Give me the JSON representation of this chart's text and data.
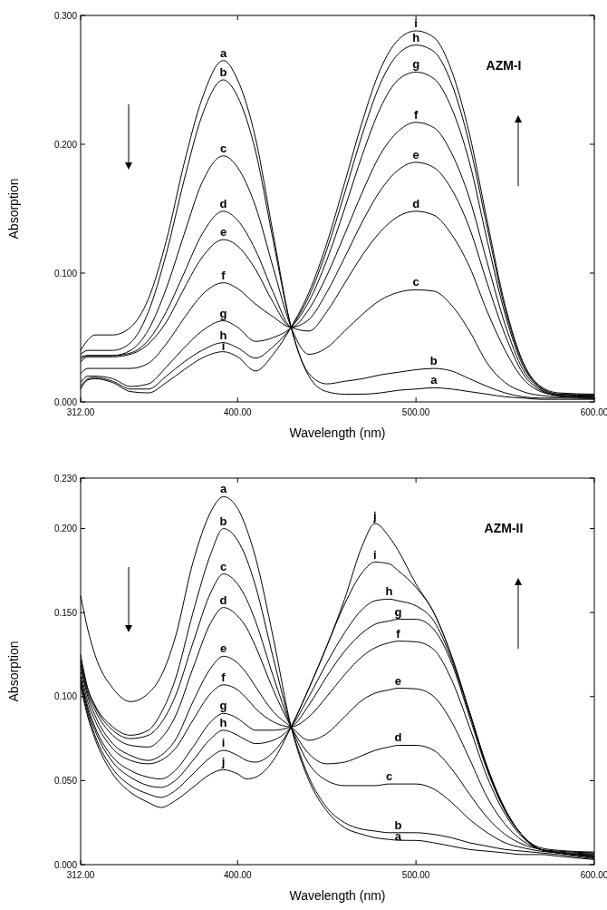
{
  "chart_data": [
    {
      "type": "line",
      "xlabel": "Wavelength (nm)",
      "ylabel": "Absorption",
      "annotations": [
        "AZM-I"
      ],
      "x": [
        312,
        316,
        320,
        330,
        340,
        350,
        360,
        370,
        380,
        392,
        400,
        410,
        420,
        430,
        440,
        450,
        460,
        470,
        480,
        490,
        500,
        510,
        520,
        530,
        540,
        550,
        560,
        570,
        580,
        600
      ],
      "xlim": [
        312,
        600
      ],
      "ylim": [
        0,
        0.3
      ],
      "xticks": [
        {
          "value": 312,
          "label": "312.00"
        },
        {
          "value": 400,
          "label": "400.00"
        },
        {
          "value": 500,
          "label": "500.00"
        },
        {
          "value": 600,
          "label": "600.00"
        }
      ],
      "yticks": [
        {
          "value": 0,
          "label": "0.000"
        },
        {
          "value": 0.1,
          "label": "0.100"
        },
        {
          "value": 0.2,
          "label": "0.200"
        },
        {
          "value": 0.3,
          "label": "0.300"
        }
      ],
      "series": [
        {
          "name": "a",
          "color": "#000000",
          "values": [
            0.04,
            0.048,
            0.052,
            0.052,
            0.058,
            0.08,
            0.125,
            0.185,
            0.235,
            0.265,
            0.25,
            0.205,
            0.13,
            0.058,
            0.02,
            0.008,
            0.006,
            0.006,
            0.007,
            0.009,
            0.01,
            0.011,
            0.01,
            0.008,
            0.006,
            0.004,
            0.003,
            0.002,
            0.002,
            0.002
          ]
        },
        {
          "name": "b",
          "color": "#000000",
          "values": [
            0.037,
            0.04,
            0.04,
            0.04,
            0.046,
            0.07,
            0.115,
            0.172,
            0.222,
            0.25,
            0.237,
            0.195,
            0.125,
            0.058,
            0.022,
            0.014,
            0.016,
            0.018,
            0.021,
            0.023,
            0.025,
            0.026,
            0.024,
            0.018,
            0.012,
            0.007,
            0.004,
            0.003,
            0.003,
            0.0025
          ]
        },
        {
          "name": "c",
          "color": "#000000",
          "values": [
            0.035,
            0.036,
            0.036,
            0.036,
            0.04,
            0.056,
            0.088,
            0.13,
            0.17,
            0.191,
            0.182,
            0.152,
            0.104,
            0.058,
            0.037,
            0.042,
            0.055,
            0.068,
            0.079,
            0.085,
            0.087,
            0.086,
            0.075,
            0.055,
            0.03,
            0.015,
            0.008,
            0.005,
            0.004,
            0.003
          ]
        },
        {
          "name": "d",
          "color": "#000000",
          "values": [
            0.033,
            0.036,
            0.036,
            0.036,
            0.038,
            0.048,
            0.07,
            0.1,
            0.13,
            0.148,
            0.141,
            0.118,
            0.085,
            0.058,
            0.055,
            0.07,
            0.092,
            0.114,
            0.132,
            0.144,
            0.148,
            0.145,
            0.13,
            0.105,
            0.07,
            0.04,
            0.018,
            0.008,
            0.005,
            0.0035
          ]
        },
        {
          "name": "e",
          "color": "#000000",
          "values": [
            0.031,
            0.035,
            0.035,
            0.035,
            0.037,
            0.045,
            0.062,
            0.088,
            0.112,
            0.126,
            0.121,
            0.103,
            0.077,
            0.058,
            0.064,
            0.085,
            0.112,
            0.14,
            0.164,
            0.18,
            0.186,
            0.182,
            0.165,
            0.135,
            0.092,
            0.052,
            0.022,
            0.009,
            0.005,
            0.004
          ]
        },
        {
          "name": "f",
          "color": "#000000",
          "values": [
            0.022,
            0.026,
            0.026,
            0.026,
            0.026,
            0.03,
            0.045,
            0.065,
            0.083,
            0.0925,
            0.088,
            0.076,
            0.066,
            0.058,
            0.072,
            0.098,
            0.13,
            0.163,
            0.192,
            0.21,
            0.217,
            0.213,
            0.193,
            0.158,
            0.108,
            0.06,
            0.025,
            0.01,
            0.005,
            0.0045
          ]
        },
        {
          "name": "g",
          "color": "#000000",
          "values": [
            0.015,
            0.02,
            0.02,
            0.018,
            0.012,
            0.014,
            0.027,
            0.042,
            0.055,
            0.063,
            0.058,
            0.047,
            0.05,
            0.058,
            0.078,
            0.11,
            0.15,
            0.192,
            0.228,
            0.25,
            0.256,
            0.251,
            0.228,
            0.186,
            0.125,
            0.068,
            0.028,
            0.011,
            0.006,
            0.005
          ]
        },
        {
          "name": "h",
          "color": "#000000",
          "values": [
            0.012,
            0.018,
            0.019,
            0.016,
            0.01,
            0.01,
            0.02,
            0.031,
            0.04,
            0.046,
            0.042,
            0.034,
            0.043,
            0.058,
            0.082,
            0.118,
            0.162,
            0.208,
            0.247,
            0.27,
            0.277,
            0.272,
            0.247,
            0.2,
            0.135,
            0.072,
            0.03,
            0.011,
            0.006,
            0.0055
          ]
        },
        {
          "name": "i",
          "color": "#000000",
          "values": [
            0.01,
            0.017,
            0.018,
            0.015,
            0.008,
            0.007,
            0.015,
            0.025,
            0.034,
            0.039,
            0.035,
            0.024,
            0.037,
            0.058,
            0.085,
            0.123,
            0.17,
            0.218,
            0.258,
            0.281,
            0.288,
            0.283,
            0.257,
            0.208,
            0.14,
            0.075,
            0.031,
            0.012,
            0.007,
            0.006
          ]
        }
      ]
    },
    {
      "type": "line",
      "xlabel": "Wavelength (nm)",
      "ylabel": "Absorption",
      "annotations": [
        "AZM-II"
      ],
      "x": [
        312,
        316,
        320,
        330,
        340,
        350,
        357,
        365,
        375,
        385,
        392,
        400,
        405,
        410,
        420,
        430,
        440,
        450,
        460,
        470,
        477,
        485,
        490,
        500,
        510,
        520,
        530,
        540,
        550,
        560,
        570,
        580,
        600
      ],
      "xlim": [
        312,
        600
      ],
      "ylim": [
        0,
        0.23
      ],
      "xticks": [
        {
          "value": 312,
          "label": "312.00"
        },
        {
          "value": 400,
          "label": "400.00"
        },
        {
          "value": 500,
          "label": "500.00"
        },
        {
          "value": 600,
          "label": "600.00"
        }
      ],
      "yticks": [
        {
          "value": 0,
          "label": "0.000"
        },
        {
          "value": 0.05,
          "label": "0.050"
        },
        {
          "value": 0.1,
          "label": "0.100"
        },
        {
          "value": 0.15,
          "label": "0.150"
        },
        {
          "value": 0.2,
          "label": "0.200"
        },
        {
          "value": 0.23,
          "label": "0.230"
        }
      ],
      "series": [
        {
          "name": "a",
          "color": "#000000",
          "values": [
            0.16,
            0.14,
            0.125,
            0.105,
            0.097,
            0.102,
            0.112,
            0.135,
            0.18,
            0.21,
            0.219,
            0.212,
            0.2,
            0.183,
            0.135,
            0.082,
            0.05,
            0.032,
            0.022,
            0.018,
            0.016,
            0.015,
            0.0145,
            0.0144,
            0.013,
            0.011,
            0.009,
            0.008,
            0.007,
            0.006,
            0.006,
            0.005,
            0.003
          ]
        },
        {
          "name": "b",
          "color": "#000000",
          "values": [
            0.125,
            0.105,
            0.095,
            0.082,
            0.077,
            0.08,
            0.09,
            0.11,
            0.15,
            0.185,
            0.2,
            0.193,
            0.182,
            0.166,
            0.123,
            0.082,
            0.052,
            0.034,
            0.025,
            0.021,
            0.02,
            0.019,
            0.019,
            0.019,
            0.018,
            0.016,
            0.013,
            0.011,
            0.009,
            0.008,
            0.007,
            0.006,
            0.0035
          ]
        },
        {
          "name": "c",
          "color": "#000000",
          "values": [
            0.122,
            0.104,
            0.094,
            0.08,
            0.075,
            0.077,
            0.084,
            0.1,
            0.132,
            0.162,
            0.173,
            0.167,
            0.158,
            0.145,
            0.112,
            0.082,
            0.06,
            0.05,
            0.047,
            0.047,
            0.047,
            0.048,
            0.048,
            0.048,
            0.045,
            0.037,
            0.027,
            0.019,
            0.013,
            0.01,
            0.008,
            0.007,
            0.004
          ]
        },
        {
          "name": "d",
          "color": "#000000",
          "values": [
            0.12,
            0.102,
            0.092,
            0.077,
            0.071,
            0.07,
            0.075,
            0.088,
            0.117,
            0.144,
            0.153,
            0.148,
            0.141,
            0.13,
            0.104,
            0.082,
            0.066,
            0.06,
            0.061,
            0.065,
            0.068,
            0.07,
            0.071,
            0.071,
            0.068,
            0.057,
            0.042,
            0.028,
            0.018,
            0.012,
            0.009,
            0.007,
            0.0045
          ]
        },
        {
          "name": "e",
          "color": "#000000",
          "values": [
            0.118,
            0.1,
            0.089,
            0.072,
            0.065,
            0.062,
            0.065,
            0.074,
            0.097,
            0.117,
            0.124,
            0.12,
            0.114,
            0.106,
            0.091,
            0.082,
            0.074,
            0.078,
            0.088,
            0.098,
            0.102,
            0.104,
            0.105,
            0.1046,
            0.1,
            0.085,
            0.063,
            0.04,
            0.024,
            0.014,
            0.009,
            0.007,
            0.005
          ]
        },
        {
          "name": "f",
          "color": "#000000",
          "values": [
            0.115,
            0.097,
            0.086,
            0.069,
            0.062,
            0.06,
            0.062,
            0.069,
            0.086,
            0.102,
            0.107,
            0.104,
            0.099,
            0.093,
            0.085,
            0.082,
            0.088,
            0.1,
            0.113,
            0.124,
            0.129,
            0.132,
            0.133,
            0.1326,
            0.128,
            0.11,
            0.082,
            0.052,
            0.03,
            0.016,
            0.009,
            0.007,
            0.0055
          ]
        },
        {
          "name": "g",
          "color": "#000000",
          "values": [
            0.112,
            0.094,
            0.082,
            0.064,
            0.056,
            0.052,
            0.051,
            0.056,
            0.07,
            0.085,
            0.09,
            0.087,
            0.083,
            0.08,
            0.08,
            0.082,
            0.095,
            0.112,
            0.127,
            0.138,
            0.143,
            0.145,
            0.146,
            0.146,
            0.14,
            0.12,
            0.088,
            0.056,
            0.032,
            0.017,
            0.009,
            0.007,
            0.006
          ]
        },
        {
          "name": "h",
          "color": "#000000",
          "values": [
            0.11,
            0.092,
            0.08,
            0.061,
            0.052,
            0.047,
            0.046,
            0.05,
            0.062,
            0.075,
            0.08,
            0.077,
            0.074,
            0.072,
            0.074,
            0.082,
            0.1,
            0.12,
            0.138,
            0.152,
            0.157,
            0.158,
            0.157,
            0.154,
            0.145,
            0.122,
            0.09,
            0.057,
            0.032,
            0.017,
            0.009,
            0.0075,
            0.0065
          ]
        },
        {
          "name": "i",
          "color": "#000000",
          "values": [
            0.108,
            0.09,
            0.077,
            0.057,
            0.047,
            0.042,
            0.04,
            0.044,
            0.054,
            0.064,
            0.068,
            0.065,
            0.062,
            0.061,
            0.067,
            0.082,
            0.105,
            0.13,
            0.155,
            0.174,
            0.18,
            0.179,
            0.175,
            0.165,
            0.15,
            0.124,
            0.091,
            0.058,
            0.033,
            0.017,
            0.009,
            0.008,
            0.007
          ]
        },
        {
          "name": "j",
          "color": "#000000",
          "values": [
            0.106,
            0.088,
            0.075,
            0.054,
            0.043,
            0.037,
            0.034,
            0.038,
            0.046,
            0.054,
            0.0565,
            0.054,
            0.051,
            0.052,
            0.062,
            0.082,
            0.105,
            0.13,
            0.158,
            0.19,
            0.203,
            0.195,
            0.187,
            0.167,
            0.15,
            0.124,
            0.091,
            0.058,
            0.033,
            0.017,
            0.01,
            0.0085,
            0.0075
          ]
        }
      ]
    }
  ]
}
